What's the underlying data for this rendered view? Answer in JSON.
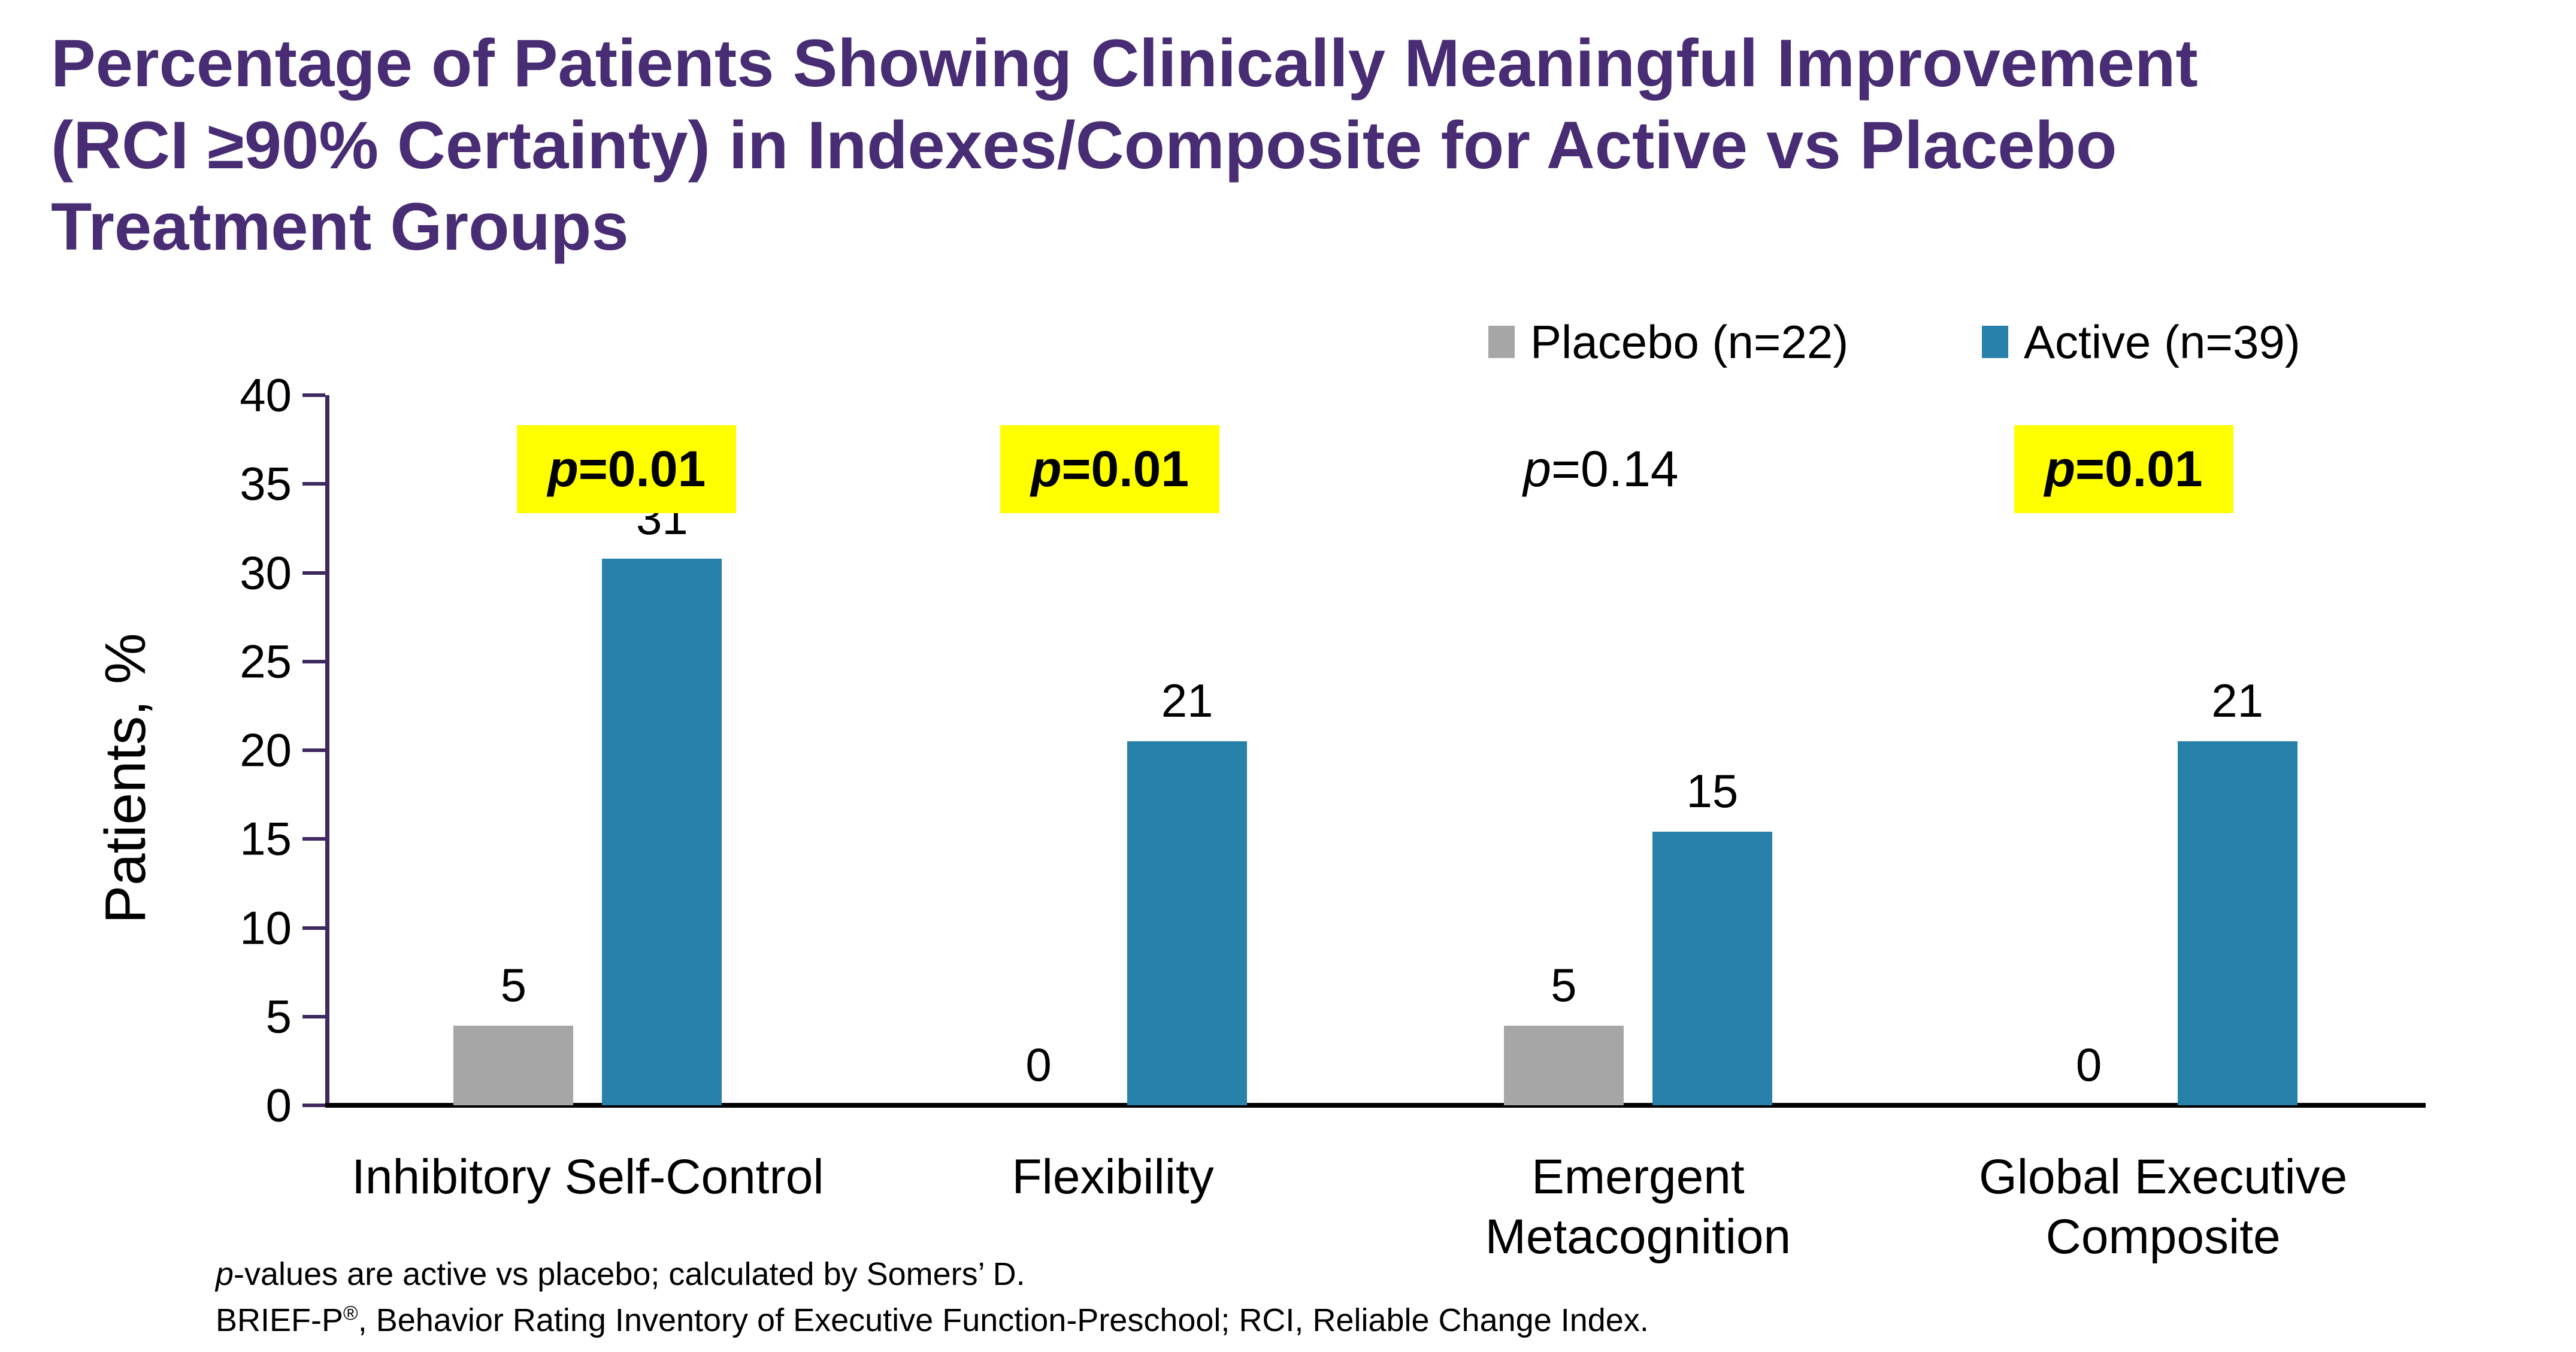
{
  "title": {
    "lines": [
      "Percentage of Patients Showing Clinically Meaningful Improvement",
      "(RCI ≥90% Certainty) in Indexes/Composite for Active vs Placebo",
      "Treatment Groups"
    ],
    "color": "#482C74"
  },
  "legend": {
    "items": [
      {
        "label": "Placebo (n=22)",
        "color": "#A6A6A6"
      },
      {
        "label": "Active (n=39)",
        "color": "#2881AB"
      }
    ]
  },
  "chart_data": {
    "type": "bar",
    "title": "Percentage of Patients Showing Clinically Meaningful Improvement (RCI ≥90% Certainty) in Indexes/Composite for Active vs Placebo Treatment Groups",
    "ylabel": "Patients, %",
    "xlabel": "",
    "ylim": [
      0,
      40
    ],
    "yticks": [
      0,
      5,
      10,
      15,
      20,
      25,
      30,
      35,
      40
    ],
    "grid": false,
    "legend_position": "top-right",
    "categories": [
      "Inhibitory Self-Control",
      "Flexibility",
      "Emergent Metacognition",
      "Global Executive Composite"
    ],
    "category_label_lines": [
      [
        "Inhibitory Self-Control"
      ],
      [
        "Flexibility"
      ],
      [
        "Emergent",
        "Metacognition"
      ],
      [
        "Global Executive",
        "Composite"
      ]
    ],
    "series": [
      {
        "name": "Placebo (n=22)",
        "color": "#A6A6A6",
        "values": [
          5,
          0,
          5,
          0
        ],
        "bar_heights_pct": [
          4.5,
          0,
          4.5,
          0
        ],
        "data_labels": [
          "5",
          "0",
          "5",
          "0"
        ]
      },
      {
        "name": "Active (n=39)",
        "color": "#2881AB",
        "values": [
          31,
          21,
          15,
          21
        ],
        "bar_heights_pct": [
          30.8,
          20.5,
          15.4,
          20.5
        ],
        "data_labels": [
          "31",
          "21",
          "15",
          "21"
        ]
      }
    ],
    "p_values": [
      {
        "p": "p",
        "rest": "=0.01",
        "text": "p=0.01",
        "highlighted": true
      },
      {
        "p": "p",
        "rest": "=0.01",
        "text": "p=0.01",
        "highlighted": true
      },
      {
        "p": "p",
        "rest": "=0.14",
        "text": "p=0.14",
        "highlighted": false
      },
      {
        "p": "p",
        "rest": "=0.01",
        "text": "p=0.01",
        "highlighted": true
      }
    ],
    "highlight_color": "#FFFF00",
    "axis_color": "#3F2A5F",
    "baseline_color": "#000000"
  },
  "footnotes": {
    "line1_p": "p",
    "line1_rest": "-values are active vs placebo; calculated by Somers’ D.",
    "line2_pre": "BRIEF-P",
    "line2_sup": "®",
    "line2_rest": ", Behavior Rating Inventory of Executive Function-Preschool; RCI, Reliable Change Index."
  }
}
